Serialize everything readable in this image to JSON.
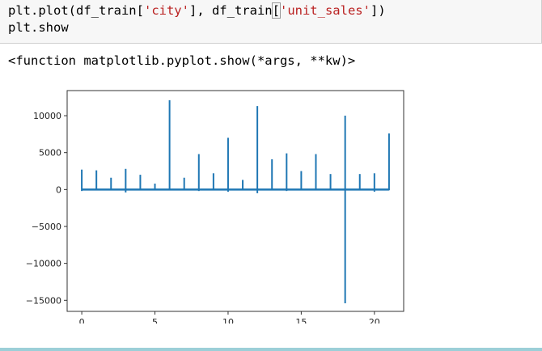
{
  "code": {
    "line1_prefix": "plt.plot(df_train[",
    "line1_str1": "'city'",
    "line1_mid": "], df_train",
    "line1_open_bracket": "[",
    "line1_str2": "'unit_sales'",
    "line1_close_bracket": "]",
    "line1_suffix": ")",
    "line2": "plt.show"
  },
  "output": {
    "text": "<function matplotlib.pyplot.show(*args, **kw)>"
  },
  "chart_data": {
    "type": "line",
    "title": "",
    "xlabel": "",
    "ylabel": "",
    "xlim": [
      -1,
      22
    ],
    "ylim": [
      -16500,
      13400
    ],
    "xticks": [
      0,
      5,
      10,
      15,
      20
    ],
    "yticks": [
      -15000,
      -10000,
      -5000,
      0,
      5000,
      10000
    ],
    "xtick_labels": [
      "0",
      "5",
      "10",
      "15",
      "20"
    ],
    "ytick_labels": [
      "−15000",
      "−10000",
      "−5000",
      "0",
      "5000",
      "10000"
    ],
    "line_color": "#1f77b4",
    "series": [
      {
        "spikes": [
          {
            "x": 0,
            "min": -200,
            "max": 2700
          },
          {
            "x": 1,
            "min": -100,
            "max": 2600
          },
          {
            "x": 2,
            "min": -100,
            "max": 1600
          },
          {
            "x": 3,
            "min": -400,
            "max": 2800
          },
          {
            "x": 4,
            "min": -100,
            "max": 2000
          },
          {
            "x": 5,
            "min": -50,
            "max": 800
          },
          {
            "x": 6,
            "min": -100,
            "max": 12100
          },
          {
            "x": 7,
            "min": -100,
            "max": 1600
          },
          {
            "x": 8,
            "min": -200,
            "max": 4800
          },
          {
            "x": 9,
            "min": -100,
            "max": 2200
          },
          {
            "x": 10,
            "min": -300,
            "max": 7000
          },
          {
            "x": 11,
            "min": -100,
            "max": 1300
          },
          {
            "x": 12,
            "min": -500,
            "max": 11300
          },
          {
            "x": 13,
            "min": -100,
            "max": 4100
          },
          {
            "x": 14,
            "min": -200,
            "max": 4900
          },
          {
            "x": 15,
            "min": -100,
            "max": 2500
          },
          {
            "x": 16,
            "min": -100,
            "max": 4800
          },
          {
            "x": 17,
            "min": -100,
            "max": 2100
          },
          {
            "x": 18,
            "min": -15400,
            "max": 10000
          },
          {
            "x": 19,
            "min": -100,
            "max": 2100
          },
          {
            "x": 20,
            "min": -300,
            "max": 2200
          },
          {
            "x": 21,
            "min": -100,
            "max": 7600
          }
        ]
      }
    ]
  }
}
